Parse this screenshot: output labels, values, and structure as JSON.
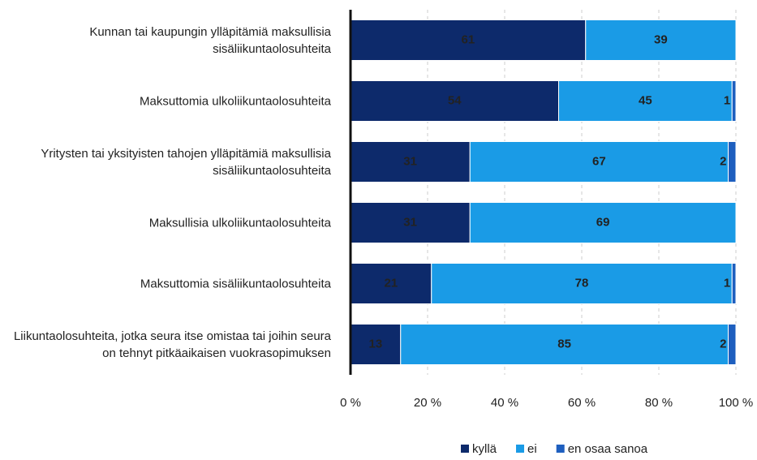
{
  "chart_data": {
    "type": "bar",
    "orientation": "horizontal",
    "stacked": true,
    "categories": [
      "Kunnan tai kaupungin ylläpitämiä maksullisia sisäliikuntaolosuhteita",
      "Maksuttomia ulkoliikuntaolosuhteita",
      "Yritysten tai yksityisten tahojen ylläpitämiä maksullisia sisäliikuntaolosuhteita",
      "Maksullisia ulkoliikuntaolosuhteita",
      "Maksuttomia sisäliikuntaolosuhteita",
      "Liikuntaolosuhteita, jotka seura itse omistaa tai joihin seura on tehnyt pitkäaikaisen vuokrasopimuksen"
    ],
    "series": [
      {
        "name": "kyllä",
        "color": "#0d2a6b",
        "values": [
          61,
          54,
          31,
          31,
          21,
          13
        ]
      },
      {
        "name": "ei",
        "color": "#1a9be6",
        "values": [
          39,
          45,
          67,
          69,
          78,
          85
        ]
      },
      {
        "name": "en osaa sanoa",
        "color": "#1e5fbf",
        "values": [
          null,
          1,
          2,
          null,
          1,
          2
        ]
      }
    ],
    "xlim": [
      0,
      100
    ],
    "xticks": [
      {
        "value": 0,
        "label": "0 %"
      },
      {
        "value": 20,
        "label": "20 %"
      },
      {
        "value": 40,
        "label": "40 %"
      },
      {
        "value": 60,
        "label": "60 %"
      },
      {
        "value": 80,
        "label": "80 %"
      },
      {
        "value": 100,
        "label": "100 %"
      }
    ],
    "grid": true,
    "legend": "bottom"
  }
}
